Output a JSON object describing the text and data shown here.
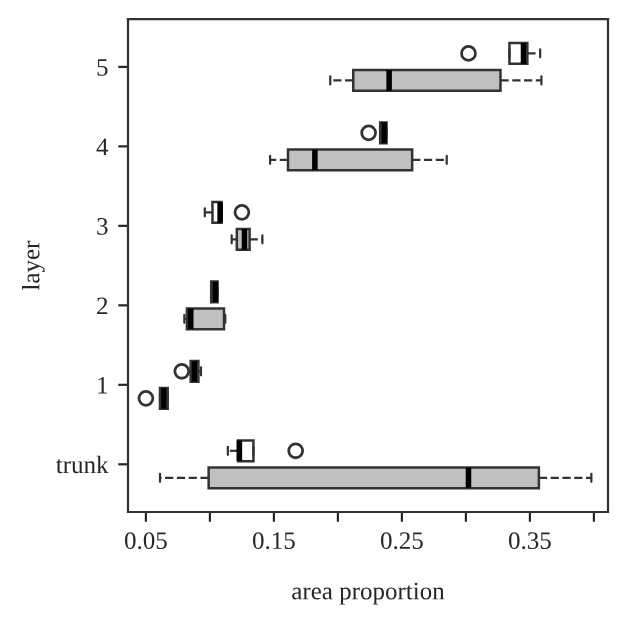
{
  "chart_data": {
    "type": "box",
    "orientation": "horizontal",
    "xlabel": "area proportion",
    "ylabel": "layer",
    "categories": [
      "5",
      "4",
      "3",
      "2",
      "1",
      "trunk"
    ],
    "xlim": [
      0.036,
      0.411
    ],
    "xticks": [
      0.05,
      {
        "value": 0.1,
        "label": null
      },
      0.15,
      {
        "value": 0.2,
        "label": null
      },
      0.25,
      {
        "value": 0.3,
        "label": null
      },
      0.35,
      {
        "value": 0.4,
        "label": null
      }
    ],
    "grid": false,
    "legend": false,
    "series": [
      {
        "color": "#ffffff",
        "boxes": [
          {
            "low": 0.334,
            "q1": 0.334,
            "median": 0.345,
            "q3": 0.348,
            "high": 0.358,
            "outliers": [
              0.302
            ]
          },
          {
            "low": 0.233,
            "q1": 0.233,
            "median": 0.236,
            "q3": 0.238,
            "high": 0.238,
            "outliers": [
              0.224
            ]
          },
          {
            "low": 0.096,
            "q1": 0.102,
            "median": 0.108,
            "q3": 0.109,
            "high": 0.109,
            "outliers": [
              0.125
            ]
          },
          {
            "low": 0.101,
            "q1": 0.101,
            "median": 0.104,
            "q3": 0.106,
            "high": 0.106
          },
          {
            "low": 0.085,
            "q1": 0.085,
            "median": 0.088,
            "q3": 0.091,
            "high": 0.093,
            "outliers": [
              0.078
            ]
          },
          {
            "low": 0.114,
            "q1": 0.122,
            "median": 0.123,
            "q3": 0.134,
            "high": 0.134,
            "outliers": [
              0.167
            ]
          }
        ]
      },
      {
        "color": "#c0c0c0",
        "boxes": [
          {
            "low": 0.194,
            "q1": 0.212,
            "median": 0.24,
            "q3": 0.327,
            "high": 0.359
          },
          {
            "low": 0.147,
            "q1": 0.161,
            "median": 0.182,
            "q3": 0.258,
            "high": 0.285
          },
          {
            "low": 0.117,
            "q1": 0.121,
            "median": 0.127,
            "q3": 0.131,
            "high": 0.141
          },
          {
            "low": 0.08,
            "q1": 0.082,
            "median": 0.085,
            "q3": 0.111,
            "high": 0.112
          },
          {
            "low": 0.061,
            "q1": 0.061,
            "median": 0.064,
            "q3": 0.067,
            "high": 0.067,
            "outliers": [
              0.05
            ]
          },
          {
            "low": 0.061,
            "q1": 0.099,
            "median": 0.302,
            "q3": 0.357,
            "high": 0.398
          }
        ]
      }
    ]
  }
}
